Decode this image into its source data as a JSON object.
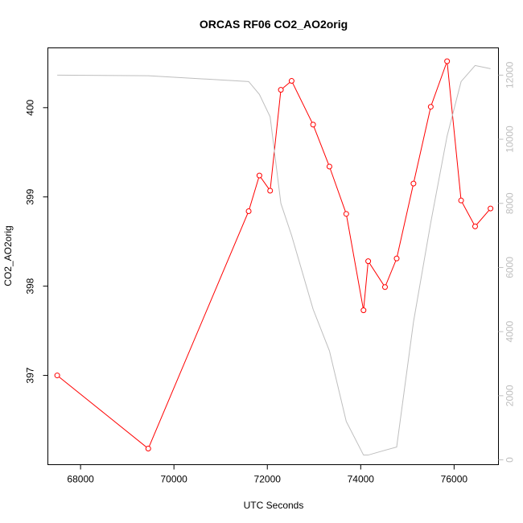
{
  "chart_data": {
    "type": "line",
    "title": "ORCAS RF06 CO2_AO2orig",
    "xlabel": "UTC Seconds",
    "ylabel": "CO2_AO2orig",
    "xlim": [
      67300,
      76950
    ],
    "ylim": [
      396.0,
      400.67
    ],
    "y2lim": [
      -150,
      12850
    ],
    "x_ticks": [
      68000,
      70000,
      72000,
      74000,
      76000
    ],
    "y_ticks": [
      397,
      398,
      399,
      400
    ],
    "y2_ticks": [
      0,
      2000,
      4000,
      6000,
      8000,
      10000,
      12000
    ],
    "grid": false,
    "series": [
      {
        "color": "#ff0000",
        "marker": "open-circle",
        "x": [
          67500,
          69450,
          71600,
          71830,
          72060,
          72290,
          72520,
          72980,
          73330,
          73690,
          74060,
          74160,
          74520,
          74770,
          75130,
          75500,
          75850,
          76150,
          76450,
          76780
        ],
        "y": [
          397.0,
          396.18,
          398.84,
          399.24,
          399.07,
          400.2,
          400.3,
          399.81,
          399.34,
          398.81,
          397.73,
          398.28,
          397.99,
          398.31,
          399.15,
          400.01,
          400.52,
          398.96,
          398.67,
          398.87
        ]
      },
      {
        "color": "#bebebe",
        "axis": "right",
        "x": [
          67500,
          69450,
          71600,
          71830,
          72060,
          72290,
          72520,
          72980,
          73330,
          73690,
          74060,
          74160,
          74520,
          74770,
          75130,
          75500,
          75850,
          76150,
          76450,
          76780
        ],
        "y": [
          12000,
          11980,
          11800,
          11400,
          10700,
          8000,
          7000,
          4700,
          3400,
          1200,
          150,
          150,
          300,
          400,
          4300,
          7400,
          10100,
          11800,
          12300,
          12200
        ]
      }
    ]
  }
}
